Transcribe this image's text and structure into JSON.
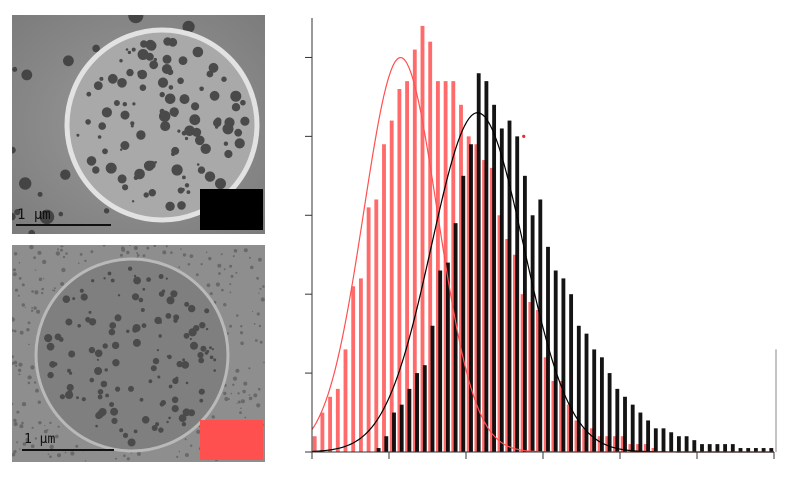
{
  "panels": {
    "top": {
      "scale_label": "1 μm",
      "swatch_color": "#000000"
    },
    "bottom": {
      "scale_label": "1 μm",
      "swatch_color": "#ff5050"
    }
  },
  "chart_data": {
    "type": "bar",
    "title": "",
    "xlabel": "",
    "ylabel": "",
    "x_ticks": [
      0,
      1,
      2,
      3,
      4,
      5,
      6
    ],
    "y_ticks": [
      0,
      1,
      2,
      3,
      4,
      5
    ],
    "xlim": [
      0,
      6
    ],
    "ylim": [
      0,
      5.5
    ],
    "grid": false,
    "legend": "none",
    "bin_width": 0.1,
    "series": [
      {
        "color": "#ff5050",
        "values": [
          0.2,
          0.5,
          0.7,
          0.8,
          1.3,
          2.1,
          2.2,
          3.1,
          3.2,
          3.9,
          4.2,
          4.6,
          4.7,
          5.1,
          5.4,
          5.2,
          4.7,
          4.7,
          4.7,
          4.4,
          4.0,
          3.9,
          3.7,
          3.6,
          3.0,
          2.7,
          2.5,
          2.0,
          1.9,
          1.8,
          1.2,
          0.9,
          0.9,
          0.6,
          0.4,
          0.3,
          0.3,
          0.2,
          0.2,
          0.2,
          0.2,
          0.1,
          0.1,
          0.1,
          0.05,
          0,
          0,
          0,
          0,
          0,
          0,
          0,
          0,
          0,
          0,
          0,
          0,
          0,
          0,
          0
        ],
        "fit": {
          "type": "gaussian",
          "amplitude": 5.0,
          "mean": 1.15,
          "sigma": 0.48
        }
      },
      {
        "color": "#000000",
        "values": [
          0,
          0,
          0,
          0,
          0,
          0,
          0,
          0,
          0.05,
          0.2,
          0.5,
          0.6,
          0.8,
          1.0,
          1.1,
          1.6,
          2.3,
          2.4,
          2.9,
          3.5,
          3.9,
          4.8,
          4.7,
          4.4,
          4.1,
          4.2,
          4.0,
          3.5,
          3.0,
          3.2,
          2.6,
          2.3,
          2.2,
          2.0,
          1.6,
          1.5,
          1.3,
          1.2,
          1.0,
          0.8,
          0.7,
          0.6,
          0.5,
          0.4,
          0.3,
          0.3,
          0.25,
          0.2,
          0.2,
          0.15,
          0.1,
          0.1,
          0.1,
          0.1,
          0.1,
          0.05,
          0.05,
          0.05,
          0.05,
          0.05
        ],
        "fit": {
          "type": "gaussian",
          "amplitude": 4.3,
          "mean": 2.15,
          "sigma": 0.6
        }
      }
    ],
    "annotations": [
      {
        "text": "",
        "x": 2.75,
        "y": 4.0,
        "kind": "dot",
        "color": "#e03030"
      }
    ]
  }
}
